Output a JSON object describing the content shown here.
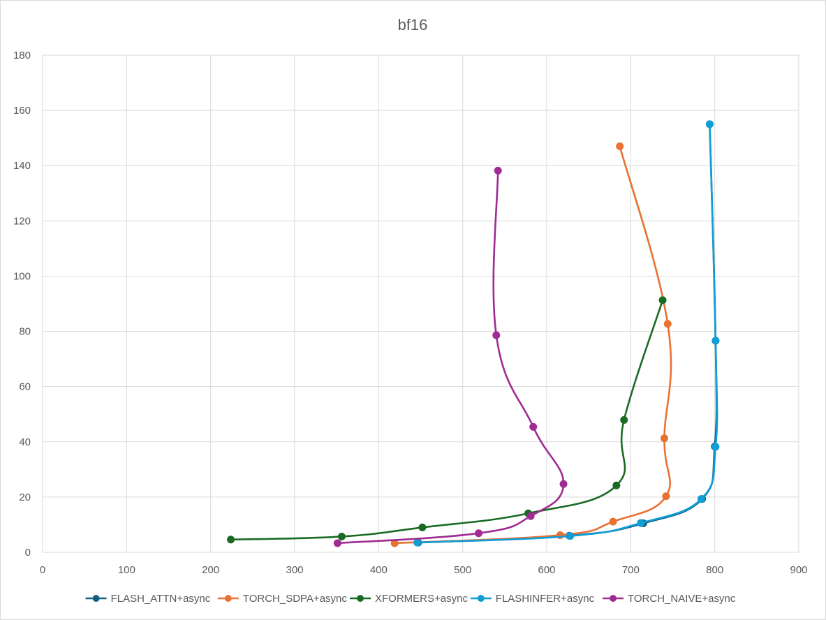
{
  "chart_data": {
    "type": "scatter",
    "title": "bf16",
    "xlabel": "",
    "ylabel": "",
    "xlim": [
      0,
      900
    ],
    "ylim": [
      0,
      180
    ],
    "x_ticks": [
      "0",
      "100",
      "200",
      "300",
      "400",
      "500",
      "600",
      "700",
      "800",
      "900"
    ],
    "y_ticks": [
      "0",
      "20",
      "40",
      "60",
      "80",
      "100",
      "120",
      "140",
      "160",
      "180"
    ],
    "grid": true,
    "legend_position": "bottom",
    "smooth_lines": true,
    "series": [
      {
        "name": "FLASH_ATTN+async",
        "color": "#156082",
        "x": [
          447,
          627,
          715,
          785,
          800,
          801,
          794
        ],
        "y": [
          3.5,
          6.0,
          10.5,
          19.3,
          38.3,
          76.6,
          155
        ]
      },
      {
        "name": "TORCH_SDPA+async",
        "color": "#e97132",
        "x": [
          419,
          616,
          679,
          742,
          740,
          744,
          687
        ],
        "y": [
          3.3,
          6.2,
          11.1,
          20.3,
          41.3,
          82.7,
          147
        ]
      },
      {
        "name": "XFORMERS+async",
        "color": "#196b24",
        "x": [
          224,
          356,
          452,
          578,
          683,
          692,
          738
        ],
        "y": [
          4.6,
          5.7,
          9.0,
          14.1,
          24.2,
          47.9,
          91.3
        ]
      },
      {
        "name": "FLASHINFER+async",
        "color": "#0f9ed5",
        "x": [
          446,
          628,
          712,
          784,
          801,
          801,
          794
        ],
        "y": [
          3.5,
          5.9,
          10.6,
          19.3,
          38.2,
          76.6,
          155
        ]
      },
      {
        "name": "TORCH_NAIVE+async",
        "color": "#a02b93",
        "x": [
          351,
          519,
          581,
          620,
          584,
          540,
          542
        ],
        "y": [
          3.3,
          6.9,
          13.1,
          24.7,
          45.4,
          78.6,
          138.2
        ]
      }
    ]
  }
}
